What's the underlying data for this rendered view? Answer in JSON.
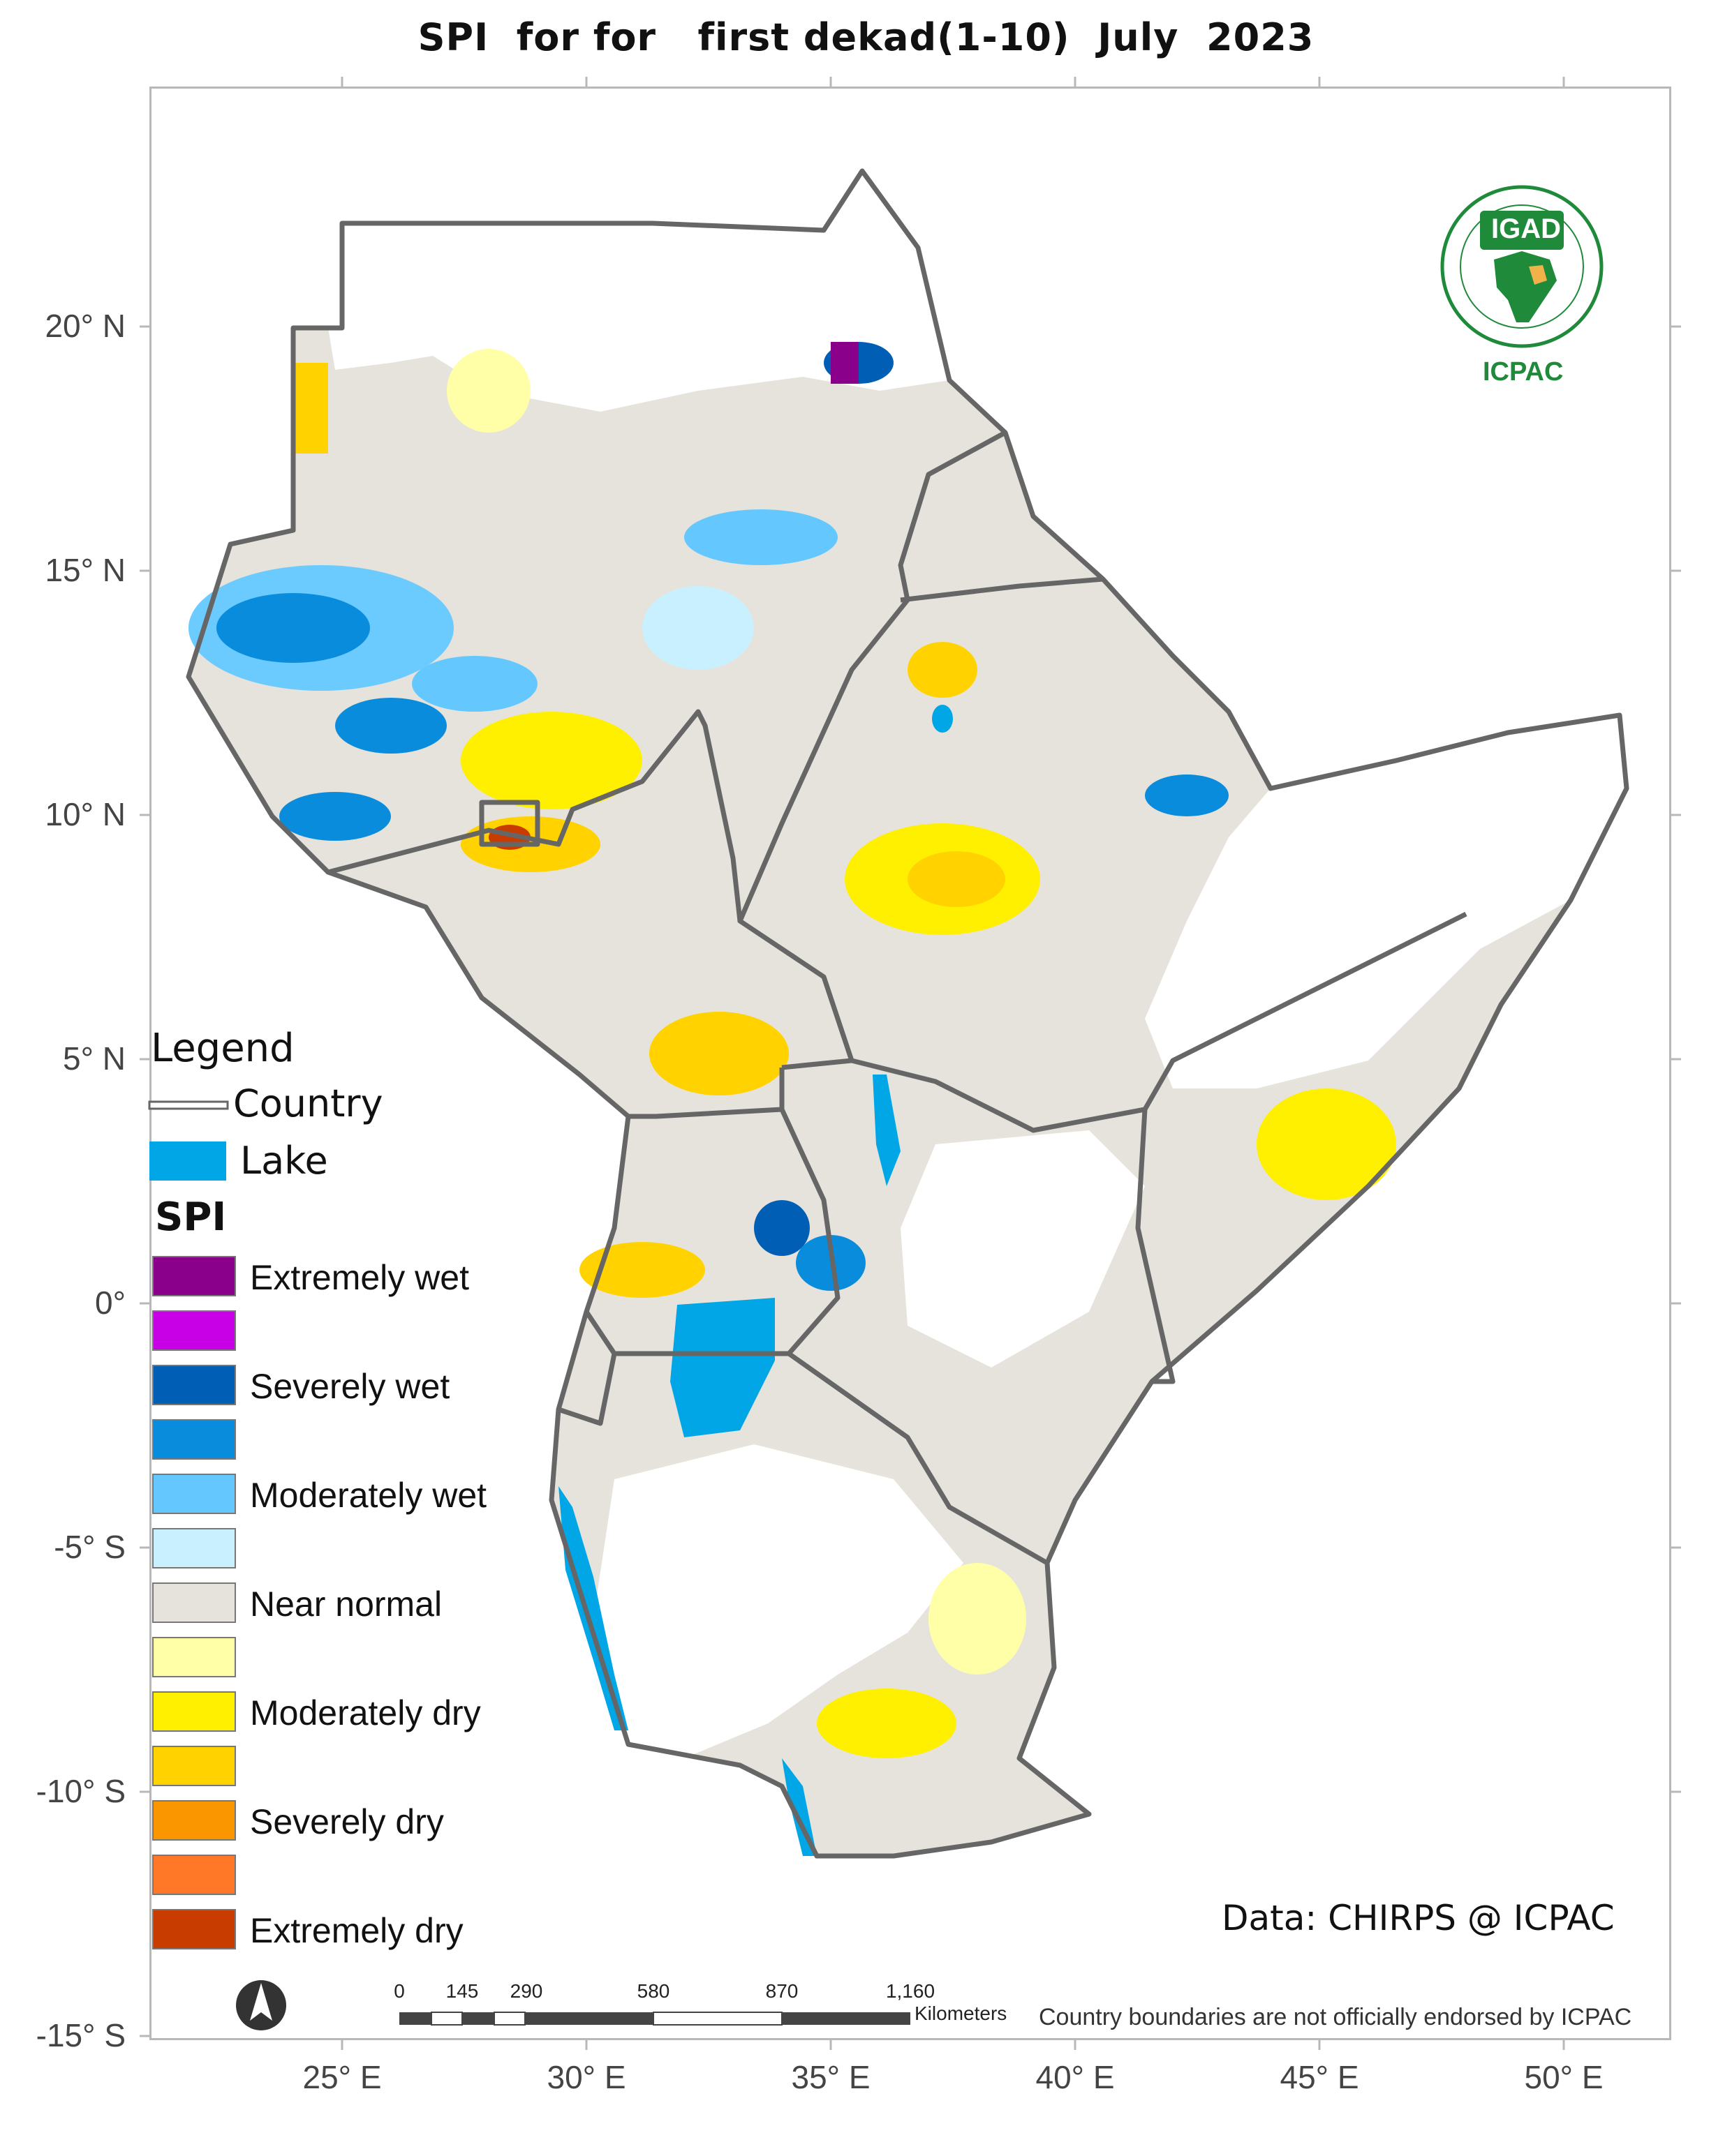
{
  "title": "SPI  for for   first dekad(1-10)  July  2023",
  "axes": {
    "lat_labels": [
      "20° N",
      "15° N",
      "10° N",
      "5° N",
      "0°",
      "-5° S",
      "-10° S",
      "-15° S"
    ],
    "lon_labels": [
      "25° E",
      "30° E",
      "35° E",
      "40° E",
      "45° E",
      "50° E"
    ]
  },
  "legend": {
    "heading": "Legend",
    "country_label": "Country",
    "lake_label": "Lake",
    "spi_heading": "SPI",
    "classes": [
      {
        "label": "Extremely wet",
        "color": "#8b008b"
      },
      {
        "label": "",
        "color": "#c800e6"
      },
      {
        "label": "Severely wet",
        "color": "#005fb4"
      },
      {
        "label": "",
        "color": "#0a8cdc"
      },
      {
        "label": "Moderately wet",
        "color": "#64c8ff"
      },
      {
        "label": "",
        "color": "#c8f0ff"
      },
      {
        "label": "Near normal",
        "color": "#e6e3dc"
      },
      {
        "label": "",
        "color": "#ffffa8"
      },
      {
        "label": "Moderately dry",
        "color": "#fff000"
      },
      {
        "label": "",
        "color": "#ffd200"
      },
      {
        "label": "Severely dry",
        "color": "#fa9600"
      },
      {
        "label": "",
        "color": "#ff7828"
      },
      {
        "label": "Extremely dry",
        "color": "#c83c00"
      }
    ],
    "lake_color": "#00a6e6"
  },
  "logo": {
    "top": "IGAD",
    "bottom": "ICPAC"
  },
  "credit": "Data: CHIRPS @ ICPAC",
  "scale_bar": {
    "ticks": [
      "0",
      "145",
      "290",
      "580",
      "870",
      "1,160"
    ],
    "unit": "Kilometers"
  },
  "disclaimer": "Country boundaries are not officially endorsed by ICPAC"
}
